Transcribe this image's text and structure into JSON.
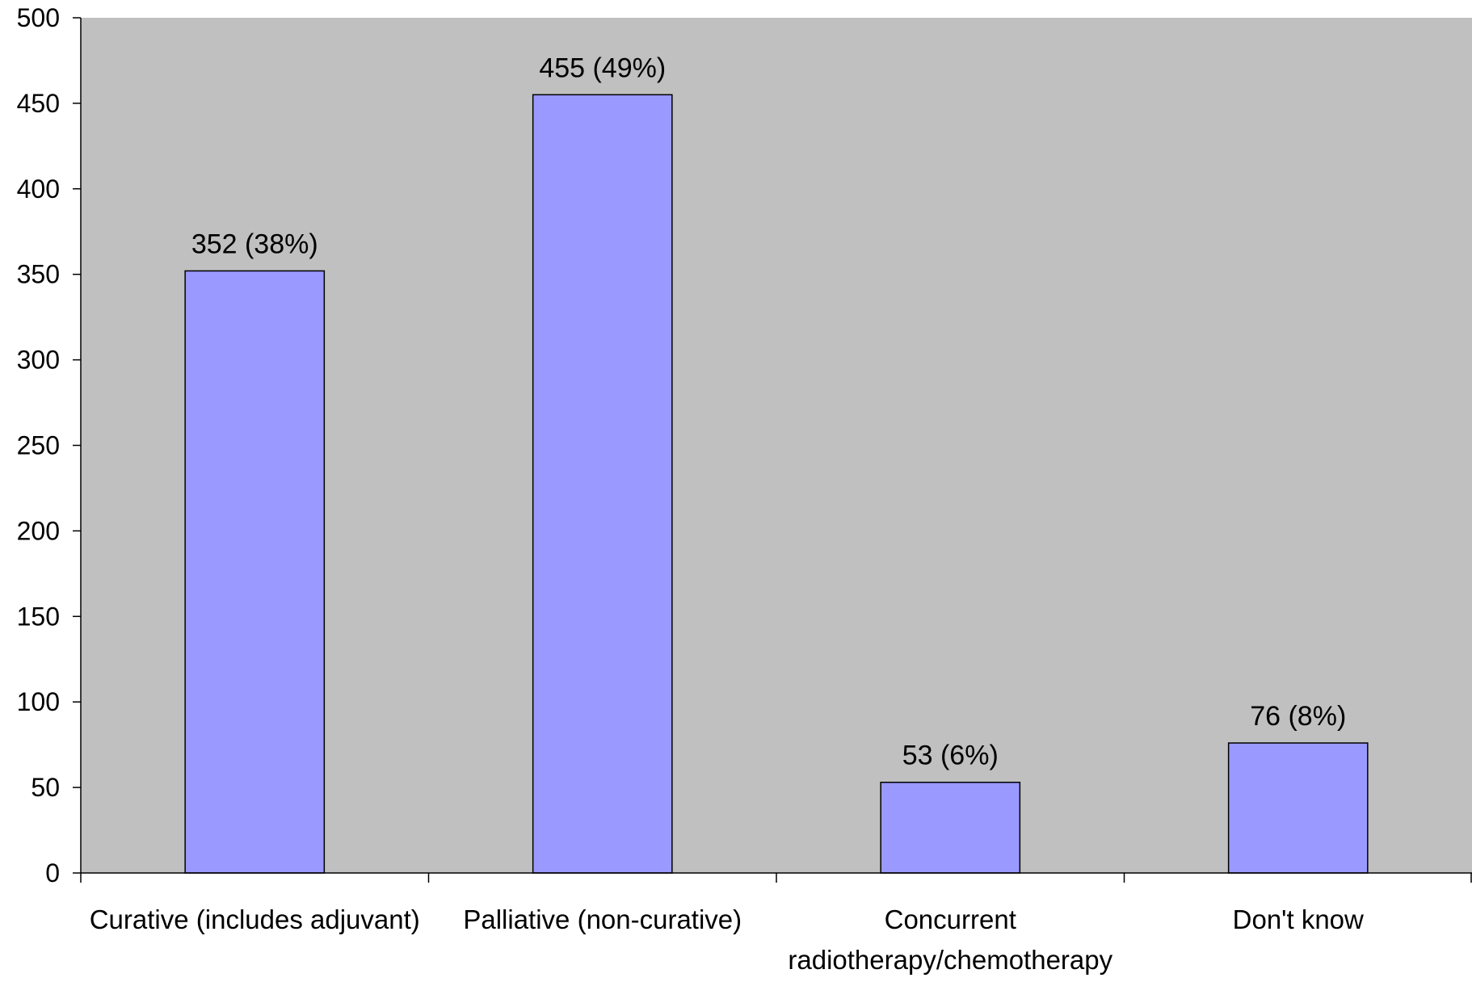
{
  "chart_data": {
    "type": "bar",
    "title": "",
    "xlabel": "",
    "ylabel": "",
    "categories": [
      [
        "Curative (includes adjuvant)"
      ],
      [
        "Palliative (non-curative)"
      ],
      [
        "Concurrent",
        "radiotherapy/chemotherapy"
      ],
      [
        "Don't know"
      ]
    ],
    "values": [
      352,
      455,
      53,
      76
    ],
    "data_labels": [
      "352 (38%)",
      "455 (49%)",
      "53 (6%)",
      "76 (8%)"
    ],
    "ylim": [
      0,
      500
    ],
    "yticks": [
      "0",
      "50",
      "100",
      "150",
      "200",
      "250",
      "300",
      "350",
      "400",
      "450",
      "500"
    ],
    "grid": false,
    "legend": "none",
    "colors": {
      "plot_area": "#C0C0C0",
      "bar_fill": "#9999FF",
      "bar_stroke": "#000000",
      "axis": "#000000"
    }
  }
}
